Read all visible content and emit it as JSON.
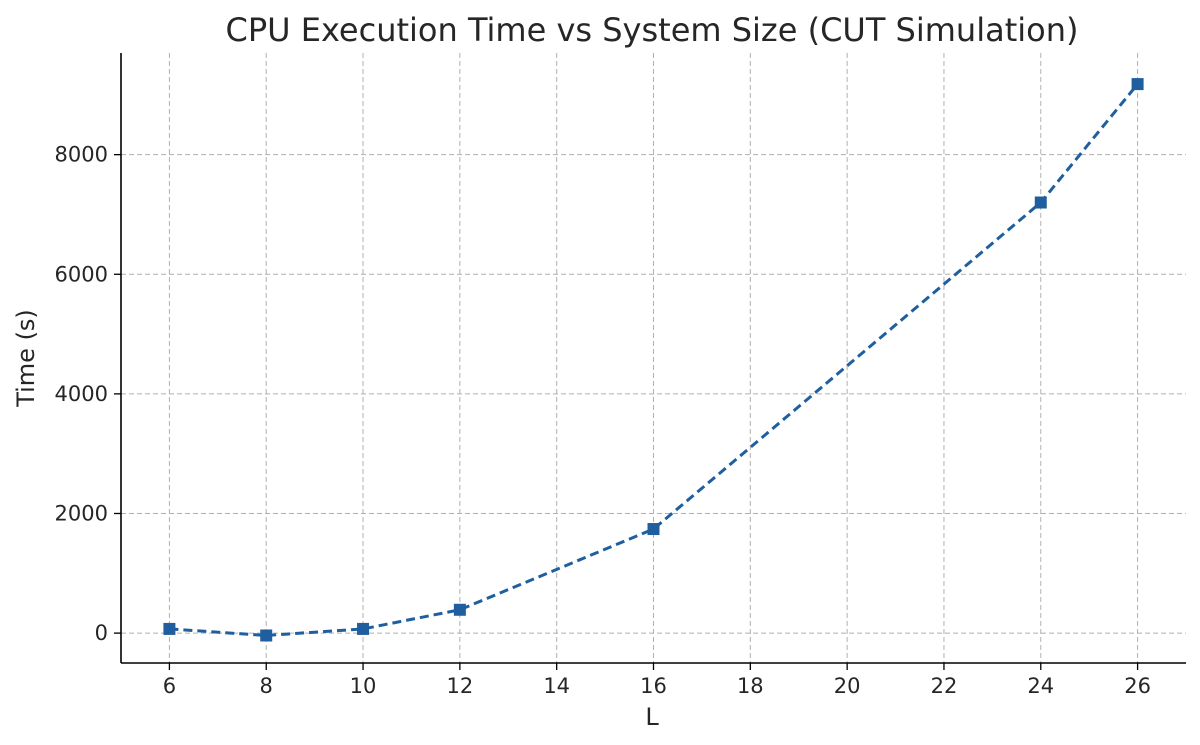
{
  "chart_data": {
    "type": "line",
    "title": "CPU Execution Time vs System Size (CUT Simulation)",
    "xlabel": "L",
    "ylabel": "Time (s)",
    "x": [
      6,
      8,
      10,
      12,
      16,
      24,
      26
    ],
    "series": [
      {
        "values": [
          70,
          -40,
          70,
          390,
          1740,
          7200,
          9180
        ],
        "color": "#1f5f9f",
        "line_style": "dashed",
        "marker": "square"
      }
    ],
    "xlim": [
      5,
      27
    ],
    "ylim": [
      -500,
      9700
    ],
    "xticks": [
      6,
      8,
      10,
      12,
      14,
      16,
      18,
      20,
      22,
      24,
      26
    ],
    "yticks": [
      0,
      2000,
      4000,
      6000,
      8000
    ],
    "grid": true,
    "legend": "none"
  }
}
